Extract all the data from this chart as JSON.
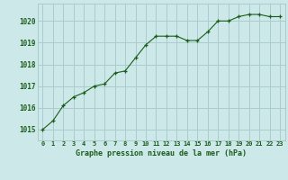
{
  "x": [
    0,
    1,
    2,
    3,
    4,
    5,
    6,
    7,
    8,
    9,
    10,
    11,
    12,
    13,
    14,
    15,
    16,
    17,
    18,
    19,
    20,
    21,
    22,
    23
  ],
  "y": [
    1015.0,
    1015.4,
    1016.1,
    1016.5,
    1016.7,
    1017.0,
    1017.1,
    1017.6,
    1017.7,
    1018.3,
    1018.9,
    1019.3,
    1019.3,
    1019.3,
    1019.1,
    1019.1,
    1019.5,
    1020.0,
    1020.0,
    1020.2,
    1020.3,
    1020.3,
    1020.2,
    1020.2
  ],
  "line_color": "#1a5c1a",
  "marker": "+",
  "bg_color": "#cce8e8",
  "grid_color": "#aacccc",
  "xlabel": "Graphe pression niveau de la mer (hPa)",
  "xlabel_color": "#1a5c1a",
  "tick_color": "#1a5c1a",
  "ylim": [
    1014.5,
    1020.8
  ],
  "yticks": [
    1015,
    1016,
    1017,
    1018,
    1019,
    1020
  ],
  "xticks": [
    0,
    1,
    2,
    3,
    4,
    5,
    6,
    7,
    8,
    9,
    10,
    11,
    12,
    13,
    14,
    15,
    16,
    17,
    18,
    19,
    20,
    21,
    22,
    23
  ],
  "xtick_labels": [
    "0",
    "1",
    "2",
    "3",
    "4",
    "5",
    "6",
    "7",
    "8",
    "9",
    "10",
    "11",
    "12",
    "13",
    "14",
    "15",
    "16",
    "17",
    "18",
    "19",
    "20",
    "21",
    "22",
    "23"
  ]
}
